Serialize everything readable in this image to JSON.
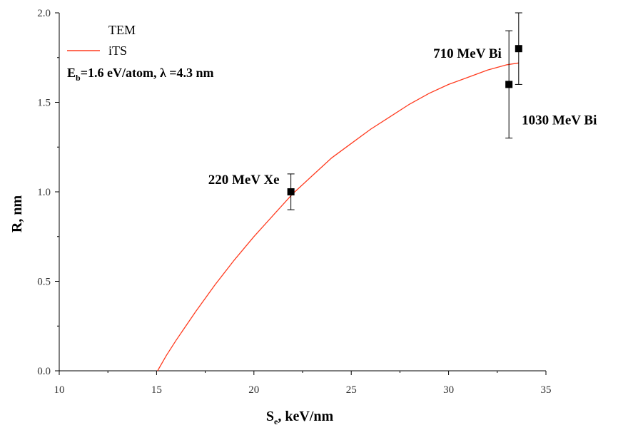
{
  "chart_data": {
    "type": "scatter",
    "xlabel": "S",
    "xlabel_sub": "e",
    "xlabel_rest": ", keV/nm",
    "ylabel": "R, nm",
    "xlim": [
      10,
      35
    ],
    "ylim": [
      0.0,
      2.0
    ],
    "x_ticks": [
      10,
      15,
      20,
      25,
      30,
      35
    ],
    "x_tick_labels": [
      "10",
      "15",
      "20",
      "25",
      "30",
      "35"
    ],
    "y_ticks": [
      0.0,
      0.5,
      1.0,
      1.5,
      2.0
    ],
    "y_tick_labels": [
      "0.0",
      "0.5",
      "1.0",
      "1.5",
      "2.0"
    ],
    "grid": false,
    "legend_position": "top-left",
    "series": [
      {
        "name": "TEM",
        "kind": "points",
        "color": "#000000",
        "points": [
          {
            "x": 21.9,
            "y": 1.0,
            "err": 0.1,
            "label": "220 MeV Xe"
          },
          {
            "x": 33.1,
            "y": 1.6,
            "err": 0.3,
            "label": "1030 MeV Bi"
          },
          {
            "x": 33.6,
            "y": 1.8,
            "err": 0.2,
            "label": "710 MeV Bi"
          }
        ]
      },
      {
        "name": "iTS",
        "kind": "line",
        "color": "#ff3b1f",
        "x": [
          15.05,
          15.5,
          16,
          17,
          18,
          19,
          20,
          21,
          22,
          23,
          24,
          25,
          26,
          27,
          28,
          29,
          30,
          31,
          32,
          33,
          33.6
        ],
        "y": [
          0.0,
          0.085,
          0.17,
          0.33,
          0.48,
          0.62,
          0.75,
          0.87,
          0.99,
          1.09,
          1.19,
          1.27,
          1.35,
          1.42,
          1.49,
          1.55,
          1.6,
          1.64,
          1.68,
          1.71,
          1.72
        ]
      }
    ],
    "legend": {
      "tem_label": "TEM",
      "its_label": "iTS",
      "params_e": "E",
      "params_sub": "b",
      "params_rest": "=1.6 eV/atom, λ =4.3 nm"
    }
  }
}
